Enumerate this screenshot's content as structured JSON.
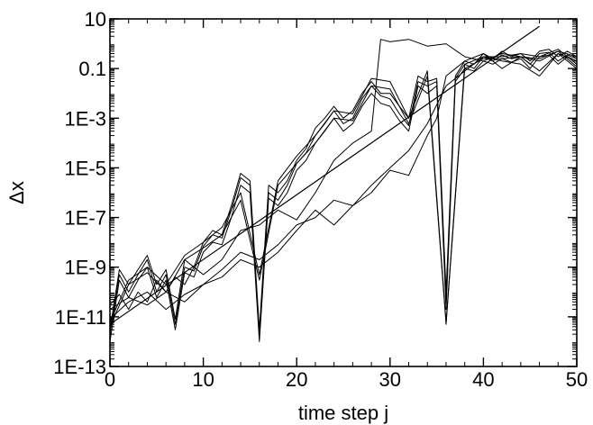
{
  "chart_data": {
    "type": "line",
    "xlabel": "time step j",
    "ylabel": "Δx",
    "xlim": [
      0,
      50
    ],
    "ylim": [
      1e-13,
      10
    ],
    "yscale": "log",
    "x_ticks": [
      0,
      10,
      20,
      30,
      40,
      50
    ],
    "x_tick_labels": [
      "0",
      "10",
      "20",
      "30",
      "40",
      "50"
    ],
    "y_ticks": [
      1e-13,
      1e-11,
      1e-09,
      1e-07,
      1e-05,
      0.001,
      0.1,
      10
    ],
    "y_tick_labels": [
      "1E-13",
      "1E-11",
      "1E-9",
      "1E-7",
      "1E-5",
      "1E-3",
      "0.1",
      "10"
    ],
    "grid": false,
    "legend": "none",
    "line_color": "#000000",
    "trend_line": {
      "x": [
        0,
        46
      ],
      "y": [
        5e-12,
        5
      ]
    },
    "series": [
      {
        "x": [
          0,
          1,
          2,
          3,
          4,
          5,
          6,
          7,
          8,
          9,
          10,
          11,
          12,
          13,
          14,
          15,
          16,
          17,
          18,
          19,
          20,
          21,
          22,
          23,
          24,
          25,
          26,
          27,
          28,
          29,
          30,
          31,
          32,
          33,
          34,
          35,
          36,
          37,
          38,
          39,
          40,
          41,
          42,
          43,
          44,
          45,
          46,
          47,
          48,
          49,
          50
        ],
        "y": [
          3e-12,
          8e-10,
          2e-10,
          8e-10,
          3e-09,
          2e-10,
          8e-10,
          8e-12,
          2e-09,
          1e-09,
          1e-08,
          3e-08,
          2e-08,
          3e-07,
          6e-06,
          3e-06,
          3e-12,
          2e-06,
          1e-06,
          3e-06,
          2e-05,
          6e-05,
          0.0004,
          0.001,
          0.003,
          0.001,
          0.002,
          0.01,
          0.03,
          0.01,
          0.01,
          0.003,
          0.001,
          0.05,
          0.03,
          0.04,
          1e-10,
          0.05,
          0.2,
          0.15,
          0.4,
          0.25,
          0.5,
          0.3,
          0.4,
          0.2,
          0.5,
          0.6,
          0.3,
          0.5,
          0.3
        ]
      },
      {
        "x": [
          0,
          1,
          2,
          3,
          4,
          5,
          6,
          7,
          8,
          9,
          10,
          11,
          12,
          13,
          14,
          15,
          16,
          17,
          18,
          19,
          20,
          21,
          22,
          23,
          24,
          25,
          26,
          27,
          28,
          29,
          30,
          31,
          32,
          33,
          34,
          35,
          36,
          37,
          38,
          39,
          40,
          41,
          42,
          43,
          44,
          45,
          46,
          47,
          48,
          49,
          50
        ],
        "y": [
          2e-12,
          5e-10,
          1e-10,
          5e-10,
          2e-09,
          1e-10,
          5e-10,
          5e-12,
          1e-09,
          7e-10,
          7e-09,
          2e-08,
          1.5e-08,
          2e-07,
          4e-06,
          2e-06,
          2e-12,
          1e-06,
          5e-07,
          2e-06,
          1.5e-05,
          4e-05,
          0.0002,
          0.0006,
          0.002,
          0.0006,
          0.001,
          0.006,
          0.02,
          0.008,
          0.006,
          0.0015,
          0.0005,
          0.03,
          0.02,
          0.03,
          5e-11,
          0.04,
          0.15,
          0.1,
          0.3,
          0.2,
          0.35,
          0.25,
          0.3,
          0.15,
          0.4,
          0.45,
          0.2,
          0.35,
          0.25
        ]
      },
      {
        "x": [
          0,
          1,
          2,
          3,
          4,
          5,
          6,
          7,
          8,
          9,
          10,
          11,
          12,
          13,
          14,
          15,
          16,
          17,
          18,
          19,
          20,
          21,
          22,
          23,
          24,
          25,
          26,
          27,
          28,
          29,
          30,
          31,
          32,
          33,
          34,
          35,
          36,
          37,
          38,
          39,
          40,
          41,
          42,
          43,
          44,
          45,
          46,
          47,
          48,
          49,
          50
        ],
        "y": [
          1e-12,
          3e-10,
          6e-11,
          3e-10,
          1e-09,
          6e-11,
          3e-10,
          3e-12,
          6e-10,
          4e-10,
          4e-09,
          1e-08,
          8e-09,
          1e-07,
          2e-06,
          1e-06,
          1e-12,
          6e-07,
          3e-07,
          1e-06,
          8e-06,
          2e-05,
          0.0001,
          0.0003,
          0.001,
          0.0003,
          0.0006,
          0.003,
          0.01,
          0.004,
          0.003,
          0.0008,
          0.0003,
          0.02,
          0.01,
          0.02,
          2e-11,
          0.03,
          0.1,
          0.08,
          0.2,
          0.15,
          0.25,
          0.18,
          0.25,
          0.1,
          0.3,
          0.35,
          0.15,
          0.3,
          0.2
        ]
      },
      {
        "x": [
          0,
          2,
          4,
          6,
          8,
          10,
          12,
          14,
          16,
          18,
          20,
          22,
          24,
          26,
          28,
          30,
          32,
          34,
          36,
          38,
          40,
          42,
          44,
          46,
          48,
          50
        ],
        "y": [
          6e-12,
          3e-10,
          1e-09,
          2e-10,
          3e-09,
          1e-08,
          4e-08,
          1e-06,
          5e-10,
          3e-06,
          3e-05,
          0.0002,
          0.002,
          0.0015,
          0.04,
          0.03,
          0.001,
          0.08,
          6e-12,
          0.15,
          0.3,
          0.3,
          0.4,
          0.3,
          0.6,
          0.15
        ]
      },
      {
        "x": [
          0,
          2,
          4,
          6,
          8,
          10,
          12,
          14,
          16,
          18,
          20,
          22,
          24,
          26,
          28,
          30,
          32,
          34,
          36,
          38,
          40,
          42,
          44,
          46,
          48,
          50
        ],
        "y": [
          4e-12,
          2e-10,
          6e-10,
          1e-10,
          2e-09,
          6e-09,
          2e-08,
          5e-07,
          3e-10,
          2e-06,
          1.5e-05,
          0.0001,
          0.001,
          0.0008,
          0.02,
          0.015,
          0.0006,
          0.05,
          5e-12,
          0.1,
          0.25,
          0.25,
          0.3,
          0.25,
          0.5,
          0.12
        ]
      },
      {
        "x": [
          0,
          1,
          2,
          3,
          4,
          5,
          6,
          7,
          8,
          9,
          10,
          12,
          14,
          16,
          18,
          20,
          22,
          24,
          26,
          28,
          29,
          30,
          32,
          34,
          36,
          38,
          40,
          42,
          44,
          46,
          48,
          50
        ],
        "y": [
          3e-11,
          8e-11,
          2e-11,
          1e-10,
          4e-11,
          3e-10,
          1e-10,
          4e-10,
          2e-10,
          1e-09,
          5e-10,
          2e-09,
          3e-08,
          5e-08,
          2e-07,
          8e-08,
          1e-06,
          2e-05,
          0.0001,
          0.0003,
          1.5,
          1.2,
          1.5,
          0.8,
          1,
          0.3,
          0.2,
          0.4,
          0.3,
          0.2,
          0.5,
          0.3
        ]
      },
      {
        "x": [
          0,
          2,
          4,
          6,
          8,
          10,
          12,
          14,
          16,
          18,
          20,
          22,
          24,
          26,
          28,
          30,
          32,
          34,
          36,
          38,
          40,
          42,
          44,
          46,
          48,
          50
        ],
        "y": [
          8e-12,
          4e-11,
          1e-10,
          2e-11,
          8e-11,
          2e-10,
          8e-10,
          4e-09,
          2e-09,
          8e-09,
          5e-08,
          1e-07,
          5e-07,
          3e-07,
          2e-06,
          1e-05,
          5e-05,
          0.0006,
          0.02,
          0.08,
          0.3,
          0.2,
          0.15,
          0.05,
          0.4,
          0.1
        ]
      },
      {
        "x": [
          0,
          2,
          4,
          6,
          8,
          10,
          12,
          14,
          16,
          18,
          20,
          22,
          24,
          26,
          28,
          30,
          32,
          34,
          35,
          36,
          38,
          40,
          42,
          44,
          46,
          48,
          50
        ],
        "y": [
          2e-11,
          6e-11,
          3e-11,
          1e-10,
          4e-11,
          2e-10,
          4e-10,
          2e-09,
          1e-09,
          4e-09,
          3e-08,
          2e-07,
          5e-08,
          3e-07,
          1e-06,
          8e-06,
          5e-06,
          0.0002,
          0.001,
          0.05,
          0.2,
          0.4,
          0.1,
          0.3,
          0.08,
          0.4,
          0.2
        ]
      }
    ]
  }
}
